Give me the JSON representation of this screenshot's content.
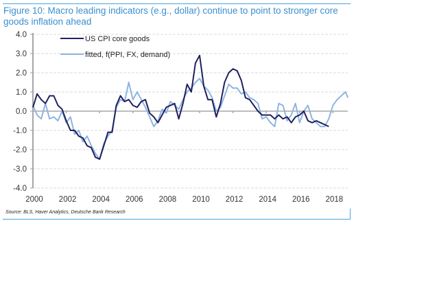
{
  "figure": {
    "title": "Figure 10: Macro leading indicators (e.g., dollar) continue to point to stronger core goods inflation ahead",
    "source": "Source: BLS, Haver Analytics, Deutsche Bank Research"
  },
  "chart_data": {
    "type": "line",
    "title": "Figure 10: Macro leading indicators (e.g., dollar) continue to point to stronger core goods inflation ahead",
    "xlabel": "",
    "ylabel": "",
    "xlim": [
      2000,
      2019
    ],
    "ylim": [
      -4.0,
      4.0
    ],
    "x_ticks": [
      "2000",
      "2002",
      "2004",
      "2006",
      "2008",
      "2010",
      "2012",
      "2014",
      "2016",
      "2018"
    ],
    "x_tick_values": [
      2000,
      2002,
      2004,
      2006,
      2008,
      2010,
      2012,
      2014,
      2016,
      2018
    ],
    "y_ticks": [
      "4.0",
      "3.0",
      "2.0",
      "1.0",
      "0.0",
      "-1.0",
      "-2.0",
      "-3.0",
      "-4.0"
    ],
    "y_tick_values": [
      4,
      3,
      2,
      1,
      0,
      -1,
      -2,
      -3,
      -4
    ],
    "grid": "horizontal dashed",
    "legend_position": "top-left",
    "series": [
      {
        "name": "US  CPI core goods",
        "color": "#1f1f5e",
        "x": [
          2000.0,
          2000.25,
          2000.5,
          2000.75,
          2001.0,
          2001.25,
          2001.5,
          2001.75,
          2002.0,
          2002.25,
          2002.5,
          2002.75,
          2003.0,
          2003.25,
          2003.5,
          2003.75,
          2004.0,
          2004.25,
          2004.5,
          2004.75,
          2005.0,
          2005.25,
          2005.5,
          2005.75,
          2006.0,
          2006.25,
          2006.5,
          2006.75,
          2007.0,
          2007.25,
          2007.5,
          2007.75,
          2008.0,
          2008.25,
          2008.5,
          2008.75,
          2009.0,
          2009.25,
          2009.5,
          2009.75,
          2010.0,
          2010.25,
          2010.5,
          2010.75,
          2011.0,
          2011.25,
          2011.5,
          2011.75,
          2012.0,
          2012.25,
          2012.5,
          2012.75,
          2013.0,
          2013.25,
          2013.5,
          2013.75,
          2014.0,
          2014.25,
          2014.5,
          2014.75,
          2015.0,
          2015.25,
          2015.5,
          2015.75,
          2016.0,
          2016.25,
          2016.5,
          2016.75,
          2017.0,
          2017.25,
          2017.5,
          2017.75
        ],
        "values": [
          0.2,
          0.9,
          0.6,
          0.4,
          0.8,
          0.8,
          0.3,
          0.1,
          -0.5,
          -1.0,
          -1.0,
          -1.3,
          -1.4,
          -1.8,
          -1.9,
          -2.4,
          -2.5,
          -1.8,
          -1.1,
          -1.1,
          0.3,
          0.8,
          0.5,
          0.6,
          0.3,
          0.2,
          0.5,
          0.6,
          -0.1,
          -0.3,
          -0.6,
          -0.2,
          0.2,
          0.3,
          0.4,
          -0.4,
          0.4,
          1.4,
          1.0,
          2.5,
          2.9,
          1.3,
          0.6,
          0.6,
          -0.3,
          0.4,
          1.5,
          2.0,
          2.2,
          2.1,
          1.6,
          0.7,
          0.6,
          0.3,
          0.0,
          -0.2,
          -0.2,
          -0.2,
          -0.4,
          -0.2,
          -0.4,
          -0.3,
          -0.6,
          -0.3,
          -0.2,
          0.0,
          -0.5,
          -0.6,
          -0.5,
          -0.6,
          -0.7,
          -0.8
        ]
      },
      {
        "name": "fitted, f(PPI, FX, demand)",
        "color": "#8db4e2",
        "x": [
          2000.0,
          2000.25,
          2000.5,
          2000.75,
          2001.0,
          2001.25,
          2001.5,
          2001.75,
          2002.0,
          2002.25,
          2002.5,
          2002.75,
          2003.0,
          2003.25,
          2003.5,
          2003.75,
          2004.0,
          2004.25,
          2004.5,
          2004.75,
          2005.0,
          2005.25,
          2005.5,
          2005.75,
          2006.0,
          2006.25,
          2006.5,
          2006.75,
          2007.0,
          2007.25,
          2007.5,
          2007.75,
          2008.0,
          2008.25,
          2008.5,
          2008.75,
          2009.0,
          2009.25,
          2009.5,
          2009.75,
          2010.0,
          2010.25,
          2010.5,
          2010.75,
          2011.0,
          2011.25,
          2011.5,
          2011.75,
          2012.0,
          2012.25,
          2012.5,
          2012.75,
          2013.0,
          2013.25,
          2013.5,
          2013.75,
          2014.0,
          2014.25,
          2014.5,
          2014.75,
          2015.0,
          2015.25,
          2015.5,
          2015.75,
          2016.0,
          2016.25,
          2016.5,
          2016.75,
          2017.0,
          2017.25,
          2017.5,
          2017.75,
          2018.0,
          2018.25,
          2018.5,
          2018.75,
          2018.9
        ],
        "values": [
          0.3,
          -0.2,
          -0.4,
          0.4,
          -0.4,
          -0.3,
          -0.5,
          0.0,
          -0.6,
          -0.3,
          -1.2,
          -1.0,
          -1.6,
          -1.3,
          -1.8,
          -2.2,
          -2.5,
          -1.7,
          -1.3,
          -1.0,
          0.2,
          0.6,
          0.5,
          1.5,
          0.6,
          1.0,
          0.6,
          0.2,
          -0.3,
          -0.8,
          -0.5,
          0.1,
          -0.1,
          0.5,
          0.3,
          0.1,
          0.6,
          1.0,
          1.2,
          1.5,
          1.7,
          1.3,
          1.1,
          0.7,
          0.0,
          0.2,
          0.8,
          1.4,
          1.2,
          1.2,
          0.9,
          1.0,
          0.7,
          0.6,
          0.4,
          -0.4,
          -0.3,
          -0.6,
          -0.8,
          0.4,
          0.3,
          -0.5,
          -0.2,
          0.4,
          -0.6,
          0.0,
          0.3,
          -0.4,
          -0.6,
          -0.8,
          -0.8,
          -0.4,
          0.3,
          0.6,
          0.8,
          1.0,
          0.7
        ]
      }
    ]
  }
}
